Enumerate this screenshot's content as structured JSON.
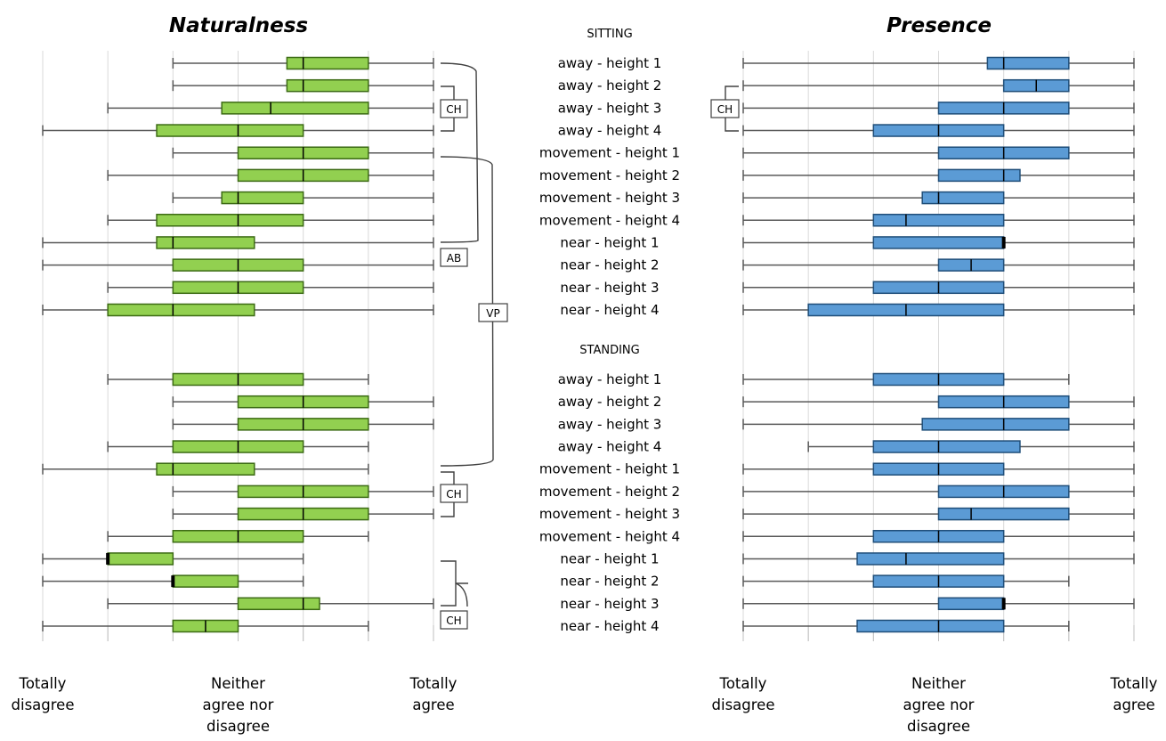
{
  "chart_data": [
    {
      "type": "boxplot",
      "title": "Naturalness",
      "scale_min": 1,
      "scale_max": 7,
      "x_ticks": [
        1,
        4,
        7
      ],
      "x_tick_labels": [
        [
          "Totally",
          "disagree"
        ],
        [
          "Neither",
          "agree nor",
          "disagree"
        ],
        [
          "Totally",
          "agree"
        ]
      ],
      "grid": true,
      "box_color": "#92d050",
      "sections": [
        {
          "name": "SITTING",
          "rows": [
            {
              "label": "away - height 1",
              "min": 3,
              "q1": 4.75,
              "median": 5,
              "q3": 6,
              "max": 7
            },
            {
              "label": "away - height 2",
              "min": 3,
              "q1": 4.75,
              "median": 5,
              "q3": 6,
              "max": 7
            },
            {
              "label": "away - height 3",
              "min": 2,
              "q1": 3.75,
              "median": 4.5,
              "q3": 6,
              "max": 7
            },
            {
              "label": "away - height 4",
              "min": 1,
              "q1": 2.75,
              "median": 4,
              "q3": 5,
              "max": 7
            },
            {
              "label": "movement  - height 1",
              "min": 3,
              "q1": 4,
              "median": 5,
              "q3": 6,
              "max": 7
            },
            {
              "label": "movement  - height 2",
              "min": 2,
              "q1": 4,
              "median": 5,
              "q3": 6,
              "max": 7
            },
            {
              "label": "movement  - height 3",
              "min": 3,
              "q1": 3.75,
              "median": 4,
              "q3": 5,
              "max": 7
            },
            {
              "label": "movement  - height 4",
              "min": 2,
              "q1": 2.75,
              "median": 4,
              "q3": 5,
              "max": 7
            },
            {
              "label": "near - height 1",
              "min": 1,
              "q1": 2.75,
              "median": 3,
              "q3": 4.25,
              "max": 7
            },
            {
              "label": "near - height 2",
              "min": 1,
              "q1": 3,
              "median": 4,
              "q3": 5,
              "max": 7
            },
            {
              "label": "near - height 3",
              "min": 2,
              "q1": 3,
              "median": 4,
              "q3": 5,
              "max": 7
            },
            {
              "label": "near - height 4",
              "min": 1,
              "q1": 2,
              "median": 3,
              "q3": 4.25,
              "max": 7
            }
          ]
        },
        {
          "name": "STANDING",
          "rows": [
            {
              "label": "away - height 1",
              "min": 2,
              "q1": 3,
              "median": 4,
              "q3": 5,
              "max": 6
            },
            {
              "label": "away - height 2",
              "min": 3,
              "q1": 4,
              "median": 5,
              "q3": 6,
              "max": 7
            },
            {
              "label": "away - height 3",
              "min": 3,
              "q1": 4,
              "median": 5,
              "q3": 6,
              "max": 7
            },
            {
              "label": "away - height 4",
              "min": 2,
              "q1": 3,
              "median": 4,
              "q3": 5,
              "max": 6
            },
            {
              "label": "movement  - height 1",
              "min": 1,
              "q1": 2.75,
              "median": 3,
              "q3": 4.25,
              "max": 6
            },
            {
              "label": "movement  - height 2",
              "min": 3,
              "q1": 4,
              "median": 5,
              "q3": 6,
              "max": 7
            },
            {
              "label": "movement  - height 3",
              "min": 3,
              "q1": 4,
              "median": 5,
              "q3": 6,
              "max": 7
            },
            {
              "label": "movement  - height 4",
              "min": 2,
              "q1": 3,
              "median": 4,
              "q3": 5,
              "max": 6
            },
            {
              "label": "near - height 1",
              "min": 1,
              "q1": 2,
              "median": 2,
              "q3": 3,
              "max": 5
            },
            {
              "label": "near - height 2",
              "min": 1,
              "q1": 3,
              "median": 3,
              "q3": 4,
              "max": 5
            },
            {
              "label": "near - height 3",
              "min": 2,
              "q1": 4,
              "median": 5,
              "q3": 5.25,
              "max": 7
            },
            {
              "label": "near - height 4",
              "min": 1,
              "q1": 3,
              "median": 3.5,
              "q3": 4,
              "max": 6
            }
          ]
        }
      ],
      "annotations": [
        "CH",
        "AB",
        "VP",
        "CH",
        "CH"
      ]
    },
    {
      "type": "boxplot",
      "title": "Presence",
      "scale_min": 1,
      "scale_max": 7,
      "x_ticks": [
        1,
        4,
        7
      ],
      "x_tick_labels": [
        [
          "Totally",
          "disagree"
        ],
        [
          "Neither",
          "agree nor",
          "disagree"
        ],
        [
          "Totally",
          "agree"
        ]
      ],
      "grid": true,
      "box_color": "#5b9bd5",
      "sections": [
        {
          "name": "SITTING",
          "rows": [
            {
              "label": "away - height 1",
              "min": 1,
              "q1": 4.75,
              "median": 5,
              "q3": 6,
              "max": 7
            },
            {
              "label": "away - height 2",
              "min": 1,
              "q1": 5,
              "median": 5.5,
              "q3": 6,
              "max": 7
            },
            {
              "label": "away - height 3",
              "min": 1,
              "q1": 4,
              "median": 5,
              "q3": 6,
              "max": 7
            },
            {
              "label": "away - height 4",
              "min": 1,
              "q1": 3,
              "median": 4,
              "q3": 5,
              "max": 7
            },
            {
              "label": "movement  - height 1",
              "min": 1,
              "q1": 4,
              "median": 5,
              "q3": 6,
              "max": 7
            },
            {
              "label": "movement  - height 2",
              "min": 1,
              "q1": 4,
              "median": 5,
              "q3": 5.25,
              "max": 7
            },
            {
              "label": "movement  - height 3",
              "min": 1,
              "q1": 3.75,
              "median": 4,
              "q3": 5,
              "max": 7
            },
            {
              "label": "movement  - height 4",
              "min": 1,
              "q1": 3,
              "median": 3.5,
              "q3": 5,
              "max": 7
            },
            {
              "label": "near - height 1",
              "min": 1,
              "q1": 3,
              "median": 5,
              "q3": 5,
              "max": 7
            },
            {
              "label": "near - height 2",
              "min": 1,
              "q1": 4,
              "median": 4.5,
              "q3": 5,
              "max": 7
            },
            {
              "label": "near - height 3",
              "min": 1,
              "q1": 3,
              "median": 4,
              "q3": 5,
              "max": 7
            },
            {
              "label": "near - height 4",
              "min": 1,
              "q1": 2,
              "median": 3.5,
              "q3": 5,
              "max": 7
            }
          ]
        },
        {
          "name": "STANDING",
          "rows": [
            {
              "label": "away - height 1",
              "min": 1,
              "q1": 3,
              "median": 4,
              "q3": 5,
              "max": 6
            },
            {
              "label": "away - height 2",
              "min": 1,
              "q1": 4,
              "median": 5,
              "q3": 6,
              "max": 7
            },
            {
              "label": "away - height 3",
              "min": 1,
              "q1": 3.75,
              "median": 5,
              "q3": 6,
              "max": 7
            },
            {
              "label": "away - height 4",
              "min": 2,
              "q1": 3,
              "median": 4,
              "q3": 5.25,
              "max": 7
            },
            {
              "label": "movement  - height 1",
              "min": 1,
              "q1": 3,
              "median": 4,
              "q3": 5,
              "max": 7
            },
            {
              "label": "movement  - height 2",
              "min": 1,
              "q1": 4,
              "median": 5,
              "q3": 6,
              "max": 7
            },
            {
              "label": "movement  - height 3",
              "min": 1,
              "q1": 4,
              "median": 4.5,
              "q3": 6,
              "max": 7
            },
            {
              "label": "movement  - height 4",
              "min": 1,
              "q1": 3,
              "median": 4,
              "q3": 5,
              "max": 7
            },
            {
              "label": "near - height 1",
              "min": 1,
              "q1": 2.75,
              "median": 3.5,
              "q3": 5,
              "max": 7
            },
            {
              "label": "near - height 2",
              "min": 1,
              "q1": 3,
              "median": 4,
              "q3": 5,
              "max": 6
            },
            {
              "label": "near - height 3",
              "min": 1,
              "q1": 4,
              "median": 5,
              "q3": 5,
              "max": 7
            },
            {
              "label": "near - height 4",
              "min": 1,
              "q1": 2.75,
              "median": 4,
              "q3": 5,
              "max": 6
            }
          ]
        }
      ],
      "annotations": [
        "CH"
      ]
    }
  ]
}
